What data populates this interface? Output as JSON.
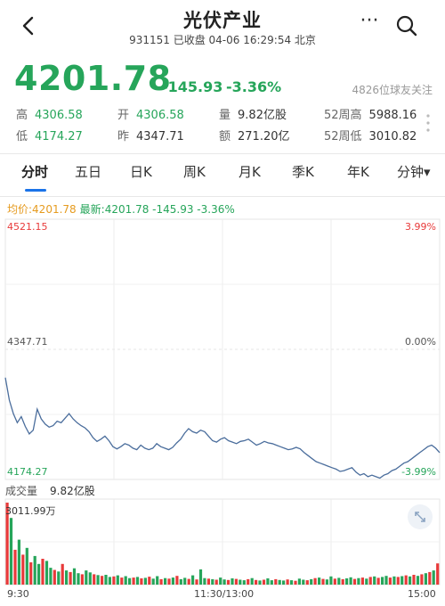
{
  "header": {
    "title": "光伏产业",
    "subtitle": "931151 已收盘 04-06 16:29:54 北京"
  },
  "quote": {
    "price": "4201.78",
    "change": "-145.93",
    "change_pct": "-3.36%",
    "followers": "4826位球友关注"
  },
  "stats": {
    "high_label": "高",
    "high_value": "4306.58",
    "open_label": "开",
    "open_value": "4306.58",
    "volume_label": "量",
    "volume_value": "9.82亿股",
    "wk52_high_label": "52周高",
    "wk52_high_value": "5988.16",
    "low_label": "低",
    "low_value": "4174.27",
    "prev_label": "昨",
    "prev_value": "4347.71",
    "amount_label": "额",
    "amount_value": "271.20亿",
    "wk52_low_label": "52周低",
    "wk52_low_value": "3010.82"
  },
  "tabs": [
    "分时",
    "五日",
    "日K",
    "周K",
    "月K",
    "季K",
    "年K",
    "分钟▾"
  ],
  "legend": {
    "avg": "均价:4201.78",
    "latest": "最新:4201.78 -145.93 -3.36%"
  },
  "chart_labels": {
    "top_price": "4521.15",
    "top_pct": "3.99%",
    "mid_price": "4347.71",
    "mid_pct": "0.00%",
    "bottom_price": "4174.27",
    "bottom_pct": "-3.99%"
  },
  "volume": {
    "label": "成交量",
    "value": "9.82亿股",
    "max": "3011.99万"
  },
  "time_labels": [
    "9:30",
    "11:30/13:00",
    "15:00"
  ],
  "colors": {
    "down": "#26a55a",
    "up": "#e83a3a",
    "line": "#4a6d9c",
    "avg": "#e69b1f"
  },
  "chart_data": {
    "type": "line",
    "x_label": "",
    "y_label": "",
    "ylim": [
      4174.27,
      4521.15
    ],
    "reference_price": 4347.71,
    "series": [
      {
        "values": [
          4310,
          4280,
          4262,
          4250,
          4258,
          4245,
          4235,
          4240,
          4268,
          4255,
          4248,
          4244,
          4246,
          4252,
          4250,
          4256,
          4262,
          4255,
          4250,
          4246,
          4243,
          4238,
          4230,
          4225,
          4228,
          4232,
          4226,
          4218,
          4215,
          4218,
          4222,
          4220,
          4216,
          4214,
          4220,
          4216,
          4214,
          4216,
          4222,
          4218,
          4216,
          4214,
          4217,
          4223,
          4228,
          4236,
          4242,
          4238,
          4236,
          4240,
          4238,
          4232,
          4226,
          4224,
          4228,
          4230,
          4226,
          4224,
          4222,
          4225,
          4226,
          4228,
          4224,
          4220,
          4222,
          4225,
          4223,
          4222,
          4220,
          4218,
          4216,
          4214,
          4215,
          4217,
          4215,
          4210,
          4206,
          4202,
          4198,
          4196,
          4194,
          4192,
          4190,
          4188,
          4185,
          4186,
          4188,
          4190,
          4184,
          4180,
          4182,
          4178,
          4180,
          4178,
          4176,
          4180,
          4182,
          4186,
          4188,
          4192,
          4196,
          4198,
          4202,
          4206,
          4210,
          4214,
          4218,
          4220,
          4216,
          4210
        ]
      }
    ],
    "volume_ymax": 3011.99,
    "volume_values": [
      3011,
      2450,
      1280,
      1650,
      1100,
      1350,
      820,
      1050,
      760,
      950,
      870,
      620,
      540,
      480,
      760,
      520,
      460,
      600,
      420,
      380,
      520,
      450,
      380,
      350,
      320,
      360,
      280,
      300,
      340,
      260,
      310,
      240,
      260,
      280,
      230,
      250,
      290,
      220,
      310,
      200,
      240,
      220,
      260,
      320,
      200,
      250,
      210,
      340,
      190,
      560,
      240,
      220,
      200,
      180,
      260,
      190,
      170,
      230,
      210,
      180,
      160,
      200,
      240,
      170,
      150,
      180,
      230,
      160,
      200,
      170,
      150,
      190,
      160,
      140,
      220,
      180,
      160,
      200,
      240,
      260,
      210,
      190,
      300,
      220,
      250,
      200,
      230,
      270,
      210,
      240,
      260,
      220,
      280,
      300,
      250,
      280,
      320,
      260,
      300,
      280,
      310,
      340,
      300,
      360,
      320,
      380,
      420,
      460,
      520,
      780
    ],
    "volume_up": [
      true,
      false,
      true,
      false,
      true,
      false,
      true,
      false,
      false,
      true,
      false,
      false,
      true,
      false,
      true,
      false,
      true,
      false,
      false,
      true,
      false,
      false,
      true,
      false,
      true,
      false,
      false,
      true,
      false,
      true,
      false,
      false,
      true,
      false,
      true,
      false,
      true,
      false,
      false,
      true,
      false,
      true,
      false,
      true,
      false,
      false,
      true,
      false,
      true,
      false,
      false,
      true,
      false,
      true,
      false,
      false,
      true,
      false,
      true,
      false,
      false,
      true,
      false,
      true,
      false,
      true,
      false,
      false,
      true,
      false,
      false,
      true,
      false,
      true,
      false,
      false,
      true,
      false,
      true,
      false,
      true,
      false,
      false,
      true,
      false,
      true,
      false,
      false,
      true,
      false,
      true,
      false,
      true,
      false,
      true,
      false,
      false,
      true,
      false,
      true,
      false,
      true,
      false,
      true,
      false,
      true,
      false,
      true,
      false,
      true
    ]
  }
}
